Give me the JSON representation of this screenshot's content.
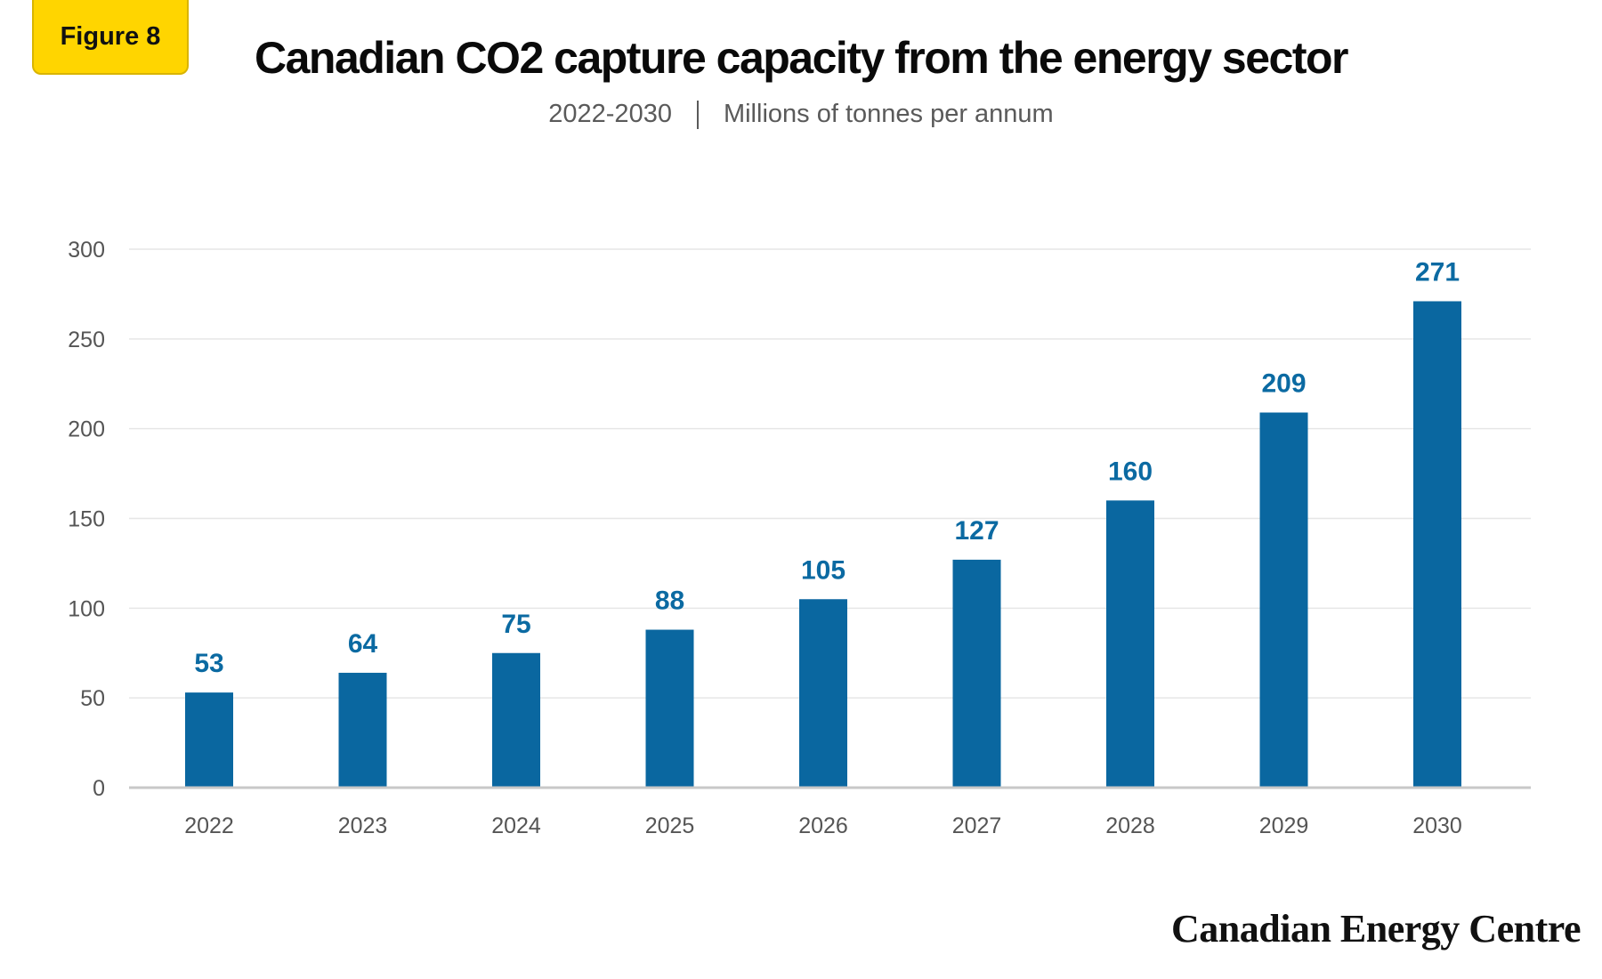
{
  "badge": {
    "label": "Figure 8"
  },
  "header": {
    "title": "Canadian CO2 capture capacity from the energy sector",
    "subtitle_range": "2022-2030",
    "subtitle_units": "Millions of tonnes per annum"
  },
  "footer": {
    "brand": "Canadian Energy Centre"
  },
  "colors": {
    "bar": "#0a67a0",
    "data_label": "#0b6aa2",
    "badge": "#ffd500",
    "grid": "#e6e6e6",
    "axis": "#c8c8c8"
  },
  "chart_data": {
    "type": "bar",
    "title": "Canadian CO2 capture capacity from the energy sector",
    "subtitle": "2022-2030 | Millions of tonnes per annum",
    "xlabel": "",
    "ylabel": "",
    "categories": [
      "2022",
      "2023",
      "2024",
      "2025",
      "2026",
      "2027",
      "2028",
      "2029",
      "2030"
    ],
    "values": [
      53,
      64,
      75,
      88,
      105,
      127,
      160,
      209,
      271
    ],
    "data_labels": [
      "53",
      "64",
      "75",
      "88",
      "105",
      "127",
      "160",
      "209",
      "271"
    ],
    "ylim": [
      0,
      300
    ],
    "yticks": [
      0,
      50,
      100,
      150,
      200,
      250,
      300
    ],
    "grid": true,
    "legend": "none"
  }
}
